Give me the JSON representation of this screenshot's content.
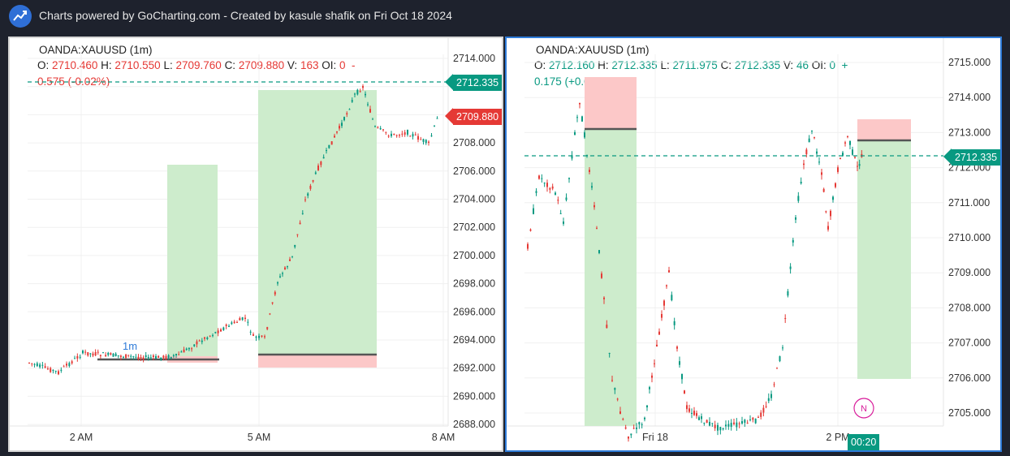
{
  "header": {
    "title": "Charts powered by GoCharting.com - Created by kasule shafik on Fri Oct 18 2024"
  },
  "colors": {
    "up": "#089981",
    "down": "#e53935",
    "accent": "#2e7bd8",
    "zone_green": "#cdeccc",
    "zone_red": "#fcc8c8"
  },
  "left_chart": {
    "symbol": "OANDA:XAUUSD (1m)",
    "ohlc_line1": {
      "o_label": "O:",
      "o": "2710.460",
      "h_label": "H:",
      "h": "2710.550",
      "l_label": "L:",
      "l": "2709.760",
      "c_label": "C:",
      "c": "2709.880",
      "v_label": "V:",
      "v": "163",
      "oi_label": "OI:",
      "oi": "0",
      "chg_a": "-"
    },
    "ohlc_line2": "0.575  (-0.02%)",
    "price_ticks": [
      "2714.000",
      "2712.000",
      "2710.000",
      "2708.000",
      "2706.000",
      "2704.000",
      "2702.000",
      "2700.000",
      "2698.000",
      "2696.000",
      "2694.000",
      "2692.000",
      "2690.000",
      "2688.000"
    ],
    "time_ticks": [
      "2 AM",
      "5 AM",
      "8 AM"
    ],
    "last_price_tag": "2712.335",
    "close_tag": "2709.880",
    "interval_marker": "1m"
  },
  "right_chart": {
    "symbol": "OANDA:XAUUSD (1m)",
    "ohlc_line1": {
      "o_label": "O:",
      "o": "2712.160",
      "h_label": "H:",
      "h": "2712.335",
      "l_label": "L:",
      "l": "2711.975",
      "c_label": "C:",
      "c": "2712.335",
      "v_label": "V:",
      "v": "46",
      "oi_label": "OI:",
      "oi": "0",
      "chg_a": "+"
    },
    "ohlc_line2": "0.175  (+0.01%)",
    "price_ticks": [
      "2715.000",
      "2714.000",
      "2713.000",
      "2712.000",
      "2711.000",
      "2710.000",
      "2709.000",
      "2708.000",
      "2707.000",
      "2706.000",
      "2705.000"
    ],
    "time_ticks": [
      "Fri 18",
      "2 PM"
    ],
    "last_price_tag": "2712.335",
    "countdown_tag": "00:20",
    "news_marker": "N"
  }
}
